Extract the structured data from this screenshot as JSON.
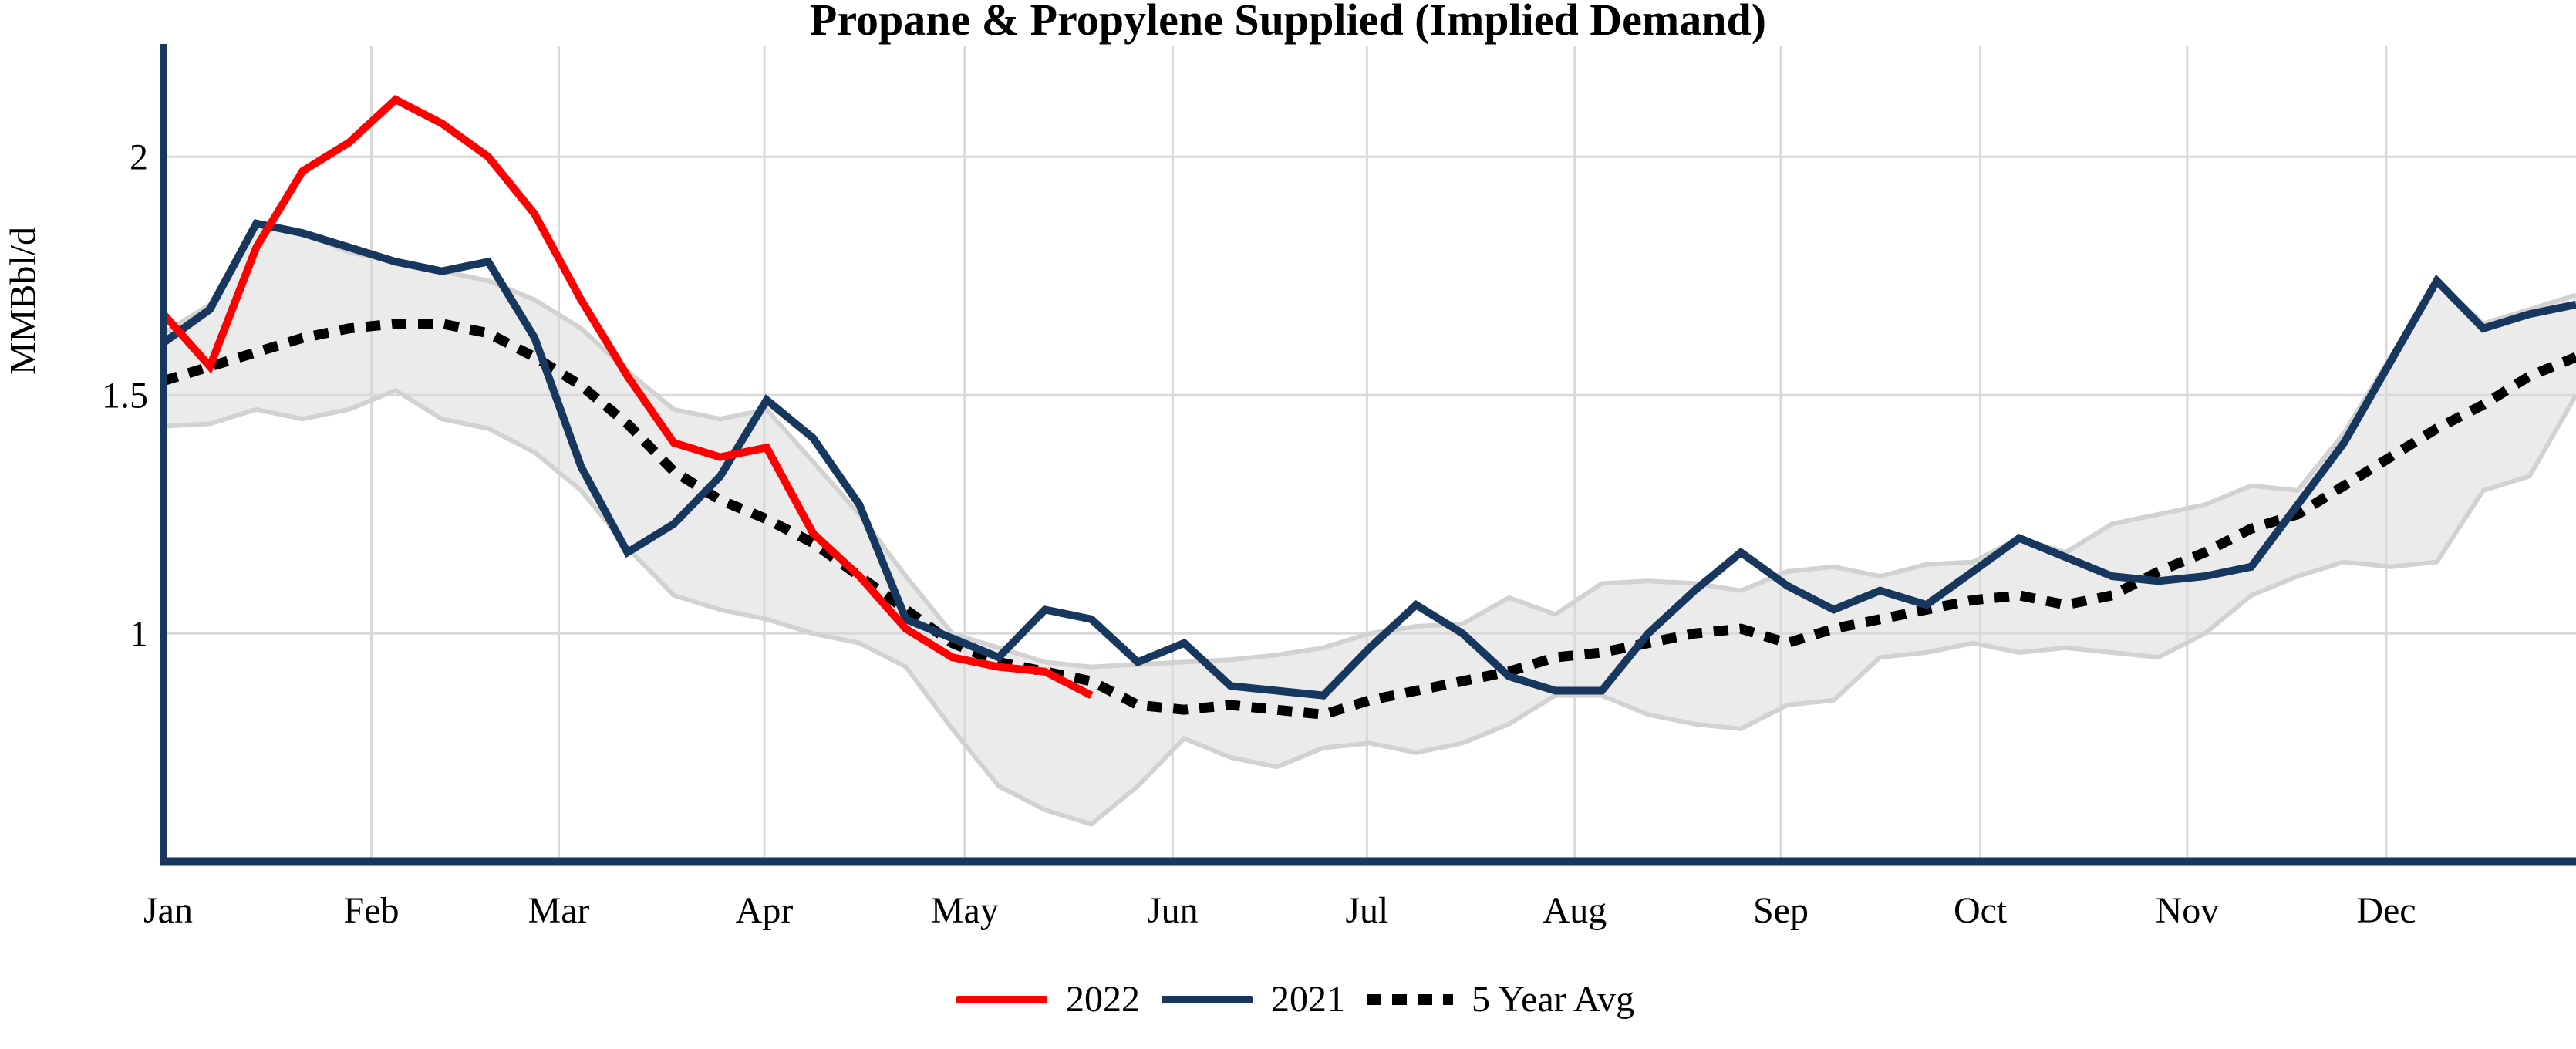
{
  "title": "Propane & Propylene Supplied (Implied Demand)",
  "y_axis": {
    "label": "MMBbl/d",
    "ticks": [
      "1",
      "1.5",
      "2"
    ],
    "tick_values": [
      1,
      1.5,
      2
    ]
  },
  "legend": [
    {
      "label": "2022",
      "color": "#ff0000",
      "style": "solid"
    },
    {
      "label": "2021",
      "color": "#17375e",
      "style": "solid"
    },
    {
      "label": "5 Year Avg",
      "color": "#000000",
      "style": "dashed"
    }
  ],
  "colors": {
    "red_2022": "#ff0000",
    "navy_2021": "#17375e",
    "avg_dotted": "#000000",
    "band_fill": "#ebebeb",
    "band_edge": "#d2d2d2",
    "gridline": "#d9d9d9",
    "axis": "#17375e",
    "text": "#000000"
  },
  "chart_data": {
    "type": "line",
    "title": "Propane & Propylene Supplied (Implied Demand)",
    "xlabel": "",
    "ylabel": "MMBbl/d",
    "x_unit": "week of year (weekly EIA data)",
    "weeks": 53,
    "ylim": [
      0.52,
      2.23
    ],
    "grid": "both",
    "legend_position": "bottom-center",
    "x_tick_labels": [
      "Jan",
      "Feb",
      "Mar",
      "Apr",
      "May",
      "Jun",
      "Jul",
      "Aug",
      "Sep",
      "Oct",
      "Nov",
      "Dec"
    ],
    "month_start_weeks": [
      0,
      4.48,
      8.52,
      12.95,
      17.27,
      21.75,
      25.94,
      30.42,
      34.86,
      39.16,
      43.62,
      47.91
    ],
    "series": [
      {
        "name": "2022",
        "style": "solid",
        "color": "#ff0000",
        "start_week": 0,
        "values": [
          1.67,
          1.56,
          1.81,
          1.97,
          2.03,
          2.12,
          2.07,
          2.0,
          1.88,
          1.7,
          1.54,
          1.4,
          1.37,
          1.39,
          1.21,
          1.12,
          1.01,
          0.95,
          0.93,
          0.92,
          0.87
        ]
      },
      {
        "name": "2021",
        "style": "solid",
        "color": "#17375e",
        "start_week": 0,
        "values": [
          1.61,
          1.68,
          1.86,
          1.84,
          1.81,
          1.78,
          1.76,
          1.78,
          1.62,
          1.35,
          1.17,
          1.23,
          1.33,
          1.49,
          1.41,
          1.27,
          1.03,
          0.99,
          0.95,
          1.05,
          1.03,
          0.94,
          0.98,
          0.89,
          0.88,
          0.87,
          0.97,
          1.06,
          1.0,
          0.91,
          0.88,
          0.88,
          1.0,
          1.09,
          1.17,
          1.1,
          1.05,
          1.09,
          1.06,
          1.13,
          1.2,
          1.16,
          1.12,
          1.11,
          1.12,
          1.14,
          1.27,
          1.4,
          1.57,
          1.74,
          1.64,
          1.67,
          1.69
        ]
      },
      {
        "name": "5 Year Avg",
        "style": "dashed",
        "color": "#000000",
        "start_week": 0,
        "values": [
          1.53,
          1.56,
          1.59,
          1.62,
          1.64,
          1.65,
          1.65,
          1.63,
          1.58,
          1.52,
          1.44,
          1.34,
          1.28,
          1.24,
          1.19,
          1.12,
          1.05,
          0.98,
          0.94,
          0.92,
          0.9,
          0.85,
          0.84,
          0.85,
          0.84,
          0.83,
          0.86,
          0.88,
          0.9,
          0.92,
          0.95,
          0.96,
          0.98,
          1.0,
          1.01,
          0.98,
          1.01,
          1.03,
          1.05,
          1.07,
          1.08,
          1.06,
          1.08,
          1.13,
          1.17,
          1.22,
          1.25,
          1.31,
          1.37,
          1.43,
          1.48,
          1.54,
          1.58
        ]
      }
    ],
    "band": {
      "name": "5 Year Range",
      "fill": "#ebebeb",
      "edge": "#d2d2d2",
      "high": [
        1.63,
        1.69,
        1.86,
        1.84,
        1.8,
        1.78,
        1.76,
        1.74,
        1.7,
        1.64,
        1.55,
        1.47,
        1.45,
        1.47,
        1.36,
        1.25,
        1.12,
        1.0,
        0.97,
        0.94,
        0.93,
        0.935,
        0.94,
        0.945,
        0.955,
        0.97,
        1.0,
        1.015,
        1.02,
        1.075,
        1.04,
        1.105,
        1.11,
        1.105,
        1.09,
        1.13,
        1.14,
        1.12,
        1.145,
        1.15,
        1.2,
        1.17,
        1.23,
        1.25,
        1.27,
        1.31,
        1.3,
        1.42,
        1.58,
        1.74,
        1.65,
        1.68,
        1.71
      ],
      "low": [
        1.435,
        1.44,
        1.47,
        1.45,
        1.47,
        1.51,
        1.45,
        1.43,
        1.38,
        1.3,
        1.18,
        1.08,
        1.05,
        1.03,
        1.0,
        0.98,
        0.93,
        0.8,
        0.68,
        0.63,
        0.6,
        0.68,
        0.78,
        0.74,
        0.72,
        0.76,
        0.77,
        0.75,
        0.77,
        0.81,
        0.87,
        0.87,
        0.83,
        0.81,
        0.8,
        0.85,
        0.86,
        0.95,
        0.96,
        0.98,
        0.96,
        0.97,
        0.96,
        0.95,
        1.0,
        1.08,
        1.12,
        1.15,
        1.14,
        1.15,
        1.3,
        1.33,
        1.5
      ]
    }
  }
}
